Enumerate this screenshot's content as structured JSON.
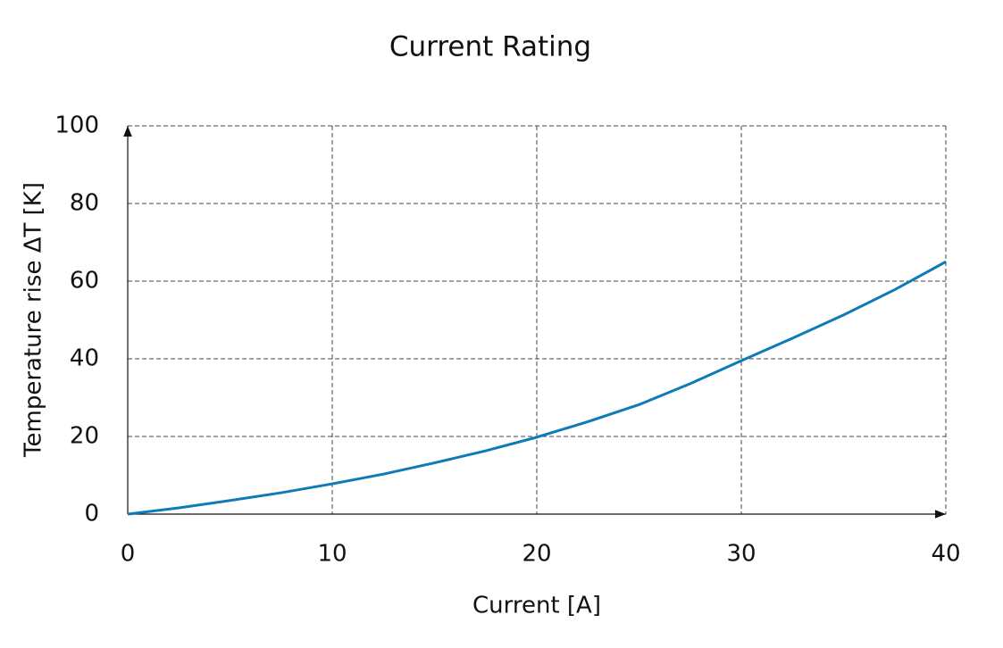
{
  "chart_data": {
    "type": "line",
    "title": "Current Rating",
    "x_label": "Current [A]",
    "y_label": "Temperature rise ΔT [K]",
    "x": [
      0,
      2.5,
      5,
      7.5,
      10,
      12.5,
      15,
      17.5,
      20,
      22.5,
      25,
      27.5,
      30,
      32.5,
      35,
      37.5,
      40
    ],
    "values": [
      0,
      1.6,
      3.5,
      5.5,
      7.8,
      10.3,
      13.2,
      16.3,
      19.8,
      23.8,
      28.2,
      33.6,
      39.5,
      45.3,
      51.3,
      57.8,
      65
    ],
    "color": "#0f7bb6",
    "xlim": [
      0,
      40
    ],
    "xticks": [
      0,
      10,
      20,
      30,
      40
    ],
    "ylim": [
      0,
      100
    ],
    "yticks": [
      0,
      20,
      40,
      60,
      80,
      100
    ],
    "grid": true
  }
}
